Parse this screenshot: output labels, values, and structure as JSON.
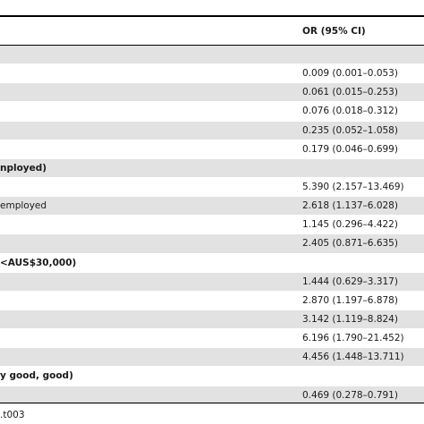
{
  "table": {
    "header": {
      "or_label": "OR (95% CI)"
    },
    "rows": [
      {
        "label": "",
        "value": "",
        "bold": false,
        "shade": true
      },
      {
        "label": "",
        "value": "0.009 (0.001–0.053)",
        "bold": false,
        "shade": false
      },
      {
        "label": "",
        "value": "0.061 (0.015–0.253)",
        "bold": false,
        "shade": true
      },
      {
        "label": "",
        "value": "0.076 (0.018–0.312)",
        "bold": false,
        "shade": false
      },
      {
        "label": "",
        "value": "0.235 (0.052–1.058)",
        "bold": false,
        "shade": true
      },
      {
        "label": "",
        "value": "0.179 (0.046–0.699)",
        "bold": false,
        "shade": false
      },
      {
        "label": "nployed)",
        "value": "",
        "bold": true,
        "shade": true
      },
      {
        "label": "",
        "value": "5.390 (2.157–13.469)",
        "bold": false,
        "shade": false
      },
      {
        "label": "employed",
        "value": "2.618 (1.137–6.028)",
        "bold": false,
        "shade": true
      },
      {
        "label": "",
        "value": "1.145 (0.296–4.422)",
        "bold": false,
        "shade": false
      },
      {
        "label": "",
        "value": "2.405 (0.871–6.635)",
        "bold": false,
        "shade": true
      },
      {
        "label": "<AUS$30,000)",
        "value": "",
        "bold": true,
        "shade": false
      },
      {
        "label": "",
        "value": "1.444 (0.629–3.317)",
        "bold": false,
        "shade": true
      },
      {
        "label": "",
        "value": "2.870 (1.197–6.878)",
        "bold": false,
        "shade": false
      },
      {
        "label": "",
        "value": "3.142 (1.119–8.824)",
        "bold": false,
        "shade": true
      },
      {
        "label": "",
        "value": "6.196 (1.790–21.452)",
        "bold": false,
        "shade": false
      },
      {
        "label": "",
        "value": "4.456 (1.448–13.711)",
        "bold": false,
        "shade": true
      },
      {
        "label": "y good, good)",
        "value": "",
        "bold": true,
        "shade": false
      },
      {
        "label": "",
        "value": "0.469 (0.278–0.791)",
        "bold": false,
        "shade": true
      }
    ]
  },
  "footer": {
    "table_id": ".t003"
  }
}
